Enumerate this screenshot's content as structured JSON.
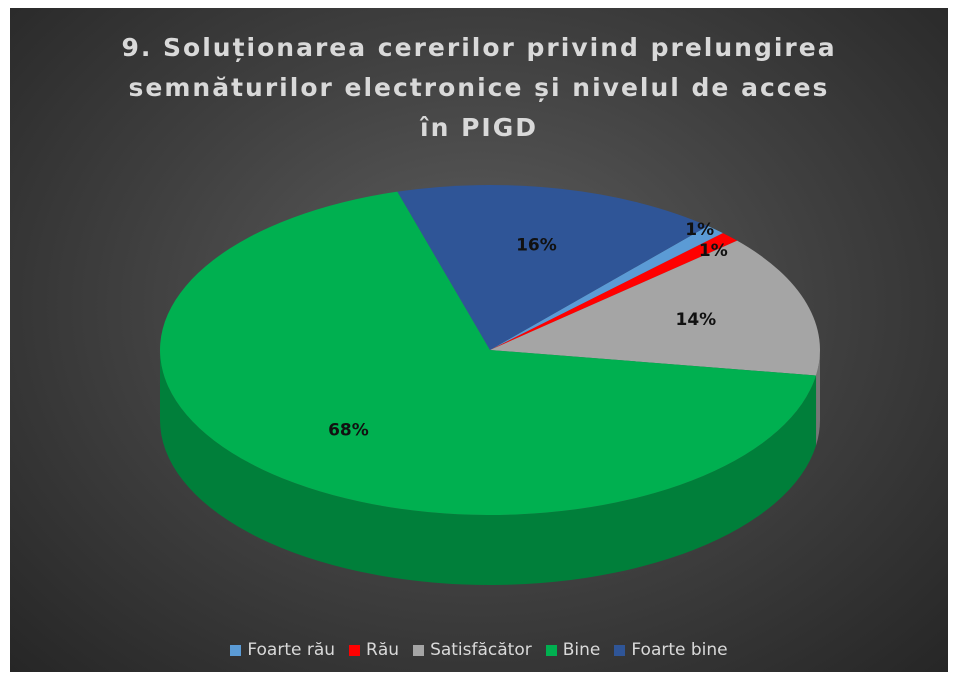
{
  "chart_data": {
    "type": "pie3d",
    "title": "9. Soluționarea cererilor privind  prelungirea semnăturilor electronice și nivelul de acces în PIGD",
    "categories": [
      "Foarte rău",
      "Rău",
      "Satisfăcător",
      "Bine",
      "Foarte bine"
    ],
    "values": [
      1,
      1,
      14,
      68,
      16
    ],
    "value_labels": [
      "1%",
      "1%",
      "14%",
      "68%",
      "16%"
    ],
    "colors": [
      "#5b9bd5",
      "#ff0000",
      "#a5a5a5",
      "#00b050",
      "#2f5597"
    ],
    "legend": "bottom"
  }
}
